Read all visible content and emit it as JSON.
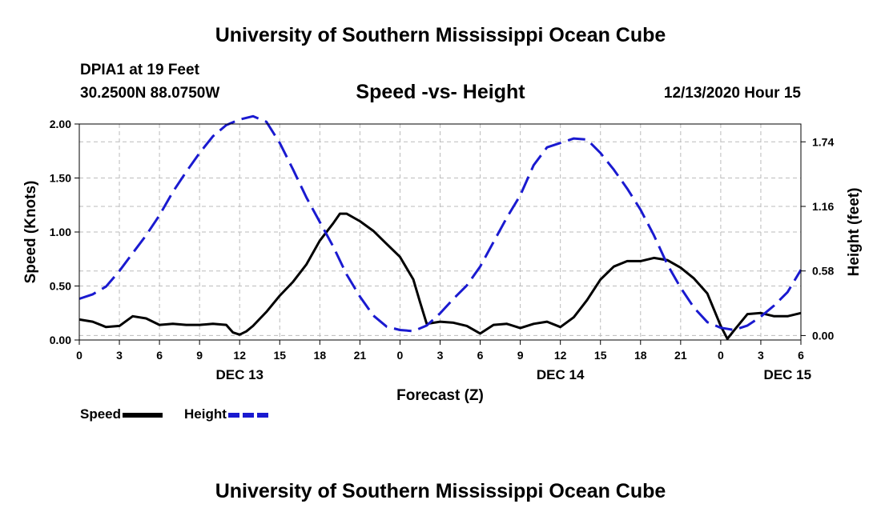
{
  "header": {
    "title_top": "University of Southern Mississippi Ocean Cube",
    "station": "DPIA1 at 19 Feet",
    "coords": "30.2500N 88.0750W",
    "subtitle": "Speed -vs- Height",
    "datetime": "12/13/2020 Hour 15"
  },
  "footer": {
    "title_bottom": "University of Southern Mississippi Ocean Cube"
  },
  "colors": {
    "speed": "#000000",
    "height": "#1a1ad0",
    "grid": "#bbbbbb"
  },
  "chart_data": {
    "type": "line",
    "xlabel": "Forecast (Z)",
    "ylabel_left": "Speed (Knots)",
    "ylabel_right": "Height (feet)",
    "x_range": [
      0,
      54
    ],
    "x_ticks": [
      {
        "x": 0,
        "label": "0"
      },
      {
        "x": 3,
        "label": "3"
      },
      {
        "x": 6,
        "label": "6"
      },
      {
        "x": 9,
        "label": "9"
      },
      {
        "x": 12,
        "label": "12"
      },
      {
        "x": 15,
        "label": "15"
      },
      {
        "x": 18,
        "label": "18"
      },
      {
        "x": 21,
        "label": "21"
      },
      {
        "x": 24,
        "label": "0"
      },
      {
        "x": 27,
        "label": "3"
      },
      {
        "x": 30,
        "label": "6"
      },
      {
        "x": 33,
        "label": "9"
      },
      {
        "x": 36,
        "label": "12"
      },
      {
        "x": 39,
        "label": "15"
      },
      {
        "x": 42,
        "label": "18"
      },
      {
        "x": 45,
        "label": "21"
      },
      {
        "x": 48,
        "label": "0"
      },
      {
        "x": 51,
        "label": "3"
      },
      {
        "x": 54,
        "label": "6"
      }
    ],
    "date_labels": [
      {
        "x": 12,
        "label": "DEC 13"
      },
      {
        "x": 36,
        "label": "DEC 14"
      },
      {
        "x": 53,
        "label": "DEC 15"
      }
    ],
    "y_left": {
      "range": [
        0,
        2
      ],
      "ticks": [
        0,
        0.5,
        1.0,
        1.5,
        2.0
      ],
      "tick_labels": [
        "0.00",
        "0.50",
        "1.00",
        "1.50",
        "2.00"
      ]
    },
    "y_right": {
      "range": [
        -0.04,
        1.9
      ],
      "ticks": [
        0,
        0.58,
        1.16,
        1.74
      ],
      "tick_labels": [
        "0.00",
        "0.58",
        "1.16",
        "1.74"
      ]
    },
    "series": [
      {
        "name": "Speed",
        "axis": "left",
        "style": "solid",
        "points": [
          [
            0,
            0.19
          ],
          [
            1,
            0.17
          ],
          [
            2,
            0.12
          ],
          [
            3,
            0.13
          ],
          [
            4,
            0.22
          ],
          [
            5,
            0.2
          ],
          [
            6,
            0.14
          ],
          [
            7,
            0.15
          ],
          [
            8,
            0.14
          ],
          [
            9,
            0.14
          ],
          [
            10,
            0.15
          ],
          [
            11,
            0.14
          ],
          [
            11.5,
            0.07
          ],
          [
            12,
            0.05
          ],
          [
            12.5,
            0.08
          ],
          [
            13,
            0.13
          ],
          [
            14,
            0.26
          ],
          [
            15,
            0.41
          ],
          [
            16,
            0.54
          ],
          [
            17,
            0.7
          ],
          [
            18,
            0.92
          ],
          [
            19,
            1.08
          ],
          [
            19.5,
            1.17
          ],
          [
            20,
            1.17
          ],
          [
            21,
            1.1
          ],
          [
            22,
            1.01
          ],
          [
            23,
            0.89
          ],
          [
            24,
            0.77
          ],
          [
            25,
            0.56
          ],
          [
            25.5,
            0.35
          ],
          [
            26,
            0.15
          ],
          [
            27,
            0.17
          ],
          [
            28,
            0.16
          ],
          [
            29,
            0.13
          ],
          [
            30,
            0.06
          ],
          [
            31,
            0.14
          ],
          [
            32,
            0.15
          ],
          [
            33,
            0.11
          ],
          [
            34,
            0.15
          ],
          [
            35,
            0.17
          ],
          [
            36,
            0.12
          ],
          [
            37,
            0.21
          ],
          [
            38,
            0.37
          ],
          [
            39,
            0.56
          ],
          [
            40,
            0.68
          ],
          [
            41,
            0.73
          ],
          [
            42,
            0.73
          ],
          [
            43,
            0.76
          ],
          [
            44,
            0.74
          ],
          [
            45,
            0.67
          ],
          [
            46,
            0.57
          ],
          [
            47,
            0.43
          ],
          [
            48,
            0.13
          ],
          [
            48.5,
            0.01
          ],
          [
            49,
            0.09
          ],
          [
            50,
            0.24
          ],
          [
            51,
            0.25
          ],
          [
            52,
            0.22
          ],
          [
            53,
            0.22
          ],
          [
            54,
            0.25
          ]
        ]
      },
      {
        "name": "Height",
        "axis": "right",
        "style": "dashed",
        "points": [
          [
            0,
            0.33
          ],
          [
            1,
            0.37
          ],
          [
            2,
            0.44
          ],
          [
            3,
            0.58
          ],
          [
            4,
            0.74
          ],
          [
            5,
            0.9
          ],
          [
            6,
            1.08
          ],
          [
            7,
            1.29
          ],
          [
            8,
            1.47
          ],
          [
            9,
            1.64
          ],
          [
            10,
            1.79
          ],
          [
            11,
            1.89
          ],
          [
            12,
            1.94
          ],
          [
            13,
            1.97
          ],
          [
            14,
            1.92
          ],
          [
            15,
            1.73
          ],
          [
            16,
            1.49
          ],
          [
            17,
            1.24
          ],
          [
            18,
            1.02
          ],
          [
            19,
            0.8
          ],
          [
            20,
            0.55
          ],
          [
            21,
            0.35
          ],
          [
            22,
            0.18
          ],
          [
            23,
            0.08
          ],
          [
            24,
            0.05
          ],
          [
            25,
            0.04
          ],
          [
            26,
            0.09
          ],
          [
            27,
            0.2
          ],
          [
            28,
            0.33
          ],
          [
            29,
            0.45
          ],
          [
            30,
            0.62
          ],
          [
            31,
            0.84
          ],
          [
            32,
            1.06
          ],
          [
            33,
            1.26
          ],
          [
            34,
            1.53
          ],
          [
            35,
            1.69
          ],
          [
            36,
            1.73
          ],
          [
            37,
            1.77
          ],
          [
            38,
            1.76
          ],
          [
            39,
            1.64
          ],
          [
            40,
            1.49
          ],
          [
            41,
            1.32
          ],
          [
            42,
            1.13
          ],
          [
            43,
            0.9
          ],
          [
            44,
            0.64
          ],
          [
            45,
            0.43
          ],
          [
            46,
            0.25
          ],
          [
            47,
            0.12
          ],
          [
            48,
            0.07
          ],
          [
            49,
            0.05
          ],
          [
            50,
            0.09
          ],
          [
            51,
            0.17
          ],
          [
            52,
            0.27
          ],
          [
            53,
            0.39
          ],
          [
            54,
            0.59
          ]
        ]
      }
    ],
    "legend": [
      "Speed",
      "Height"
    ],
    "grid": true
  }
}
